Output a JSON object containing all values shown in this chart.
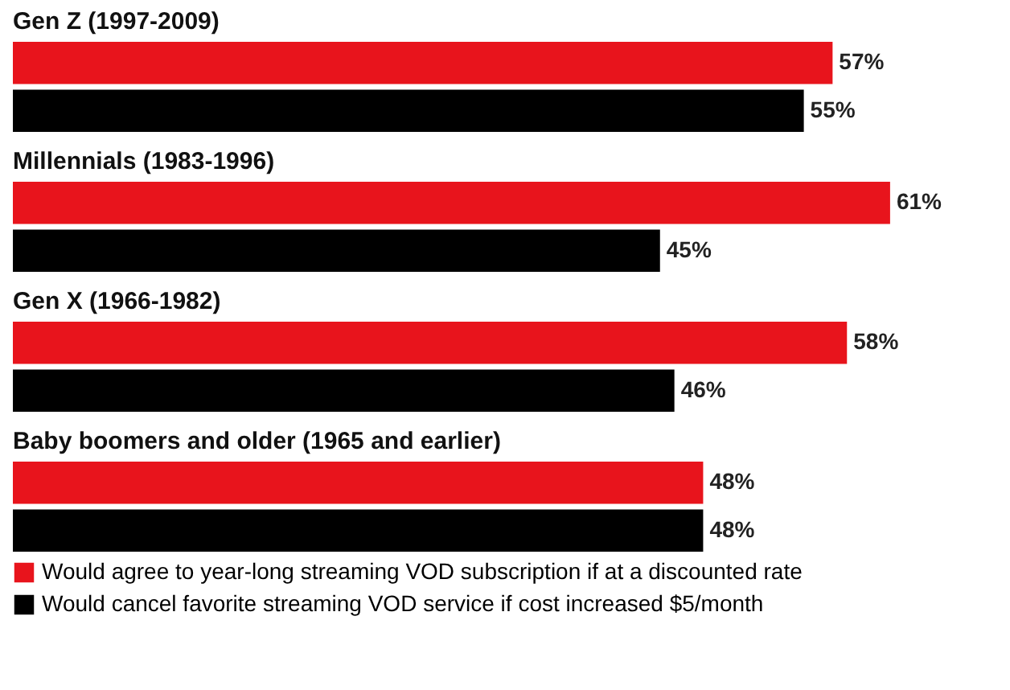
{
  "chart_data": {
    "type": "bar",
    "orientation": "horizontal",
    "categories": [
      "Gen Z (1997-2009)",
      "Millennials (1983-1996)",
      "Gen X (1966-1982)",
      "Baby boomers and older (1965 and earlier)"
    ],
    "series": [
      {
        "name": "Would agree to year-long streaming VOD subscription if at a discounted rate",
        "color": "#e8141c",
        "values": [
          57,
          61,
          58,
          48
        ],
        "value_labels": [
          "57%",
          "61%",
          "58%",
          "48%"
        ]
      },
      {
        "name": "Would cancel favorite streaming VOD service if cost increased $5/month",
        "color": "#000000",
        "values": [
          55,
          45,
          46,
          48
        ],
        "value_labels": [
          "55%",
          "45%",
          "46%",
          "48%"
        ]
      }
    ],
    "legend": "bottom"
  }
}
